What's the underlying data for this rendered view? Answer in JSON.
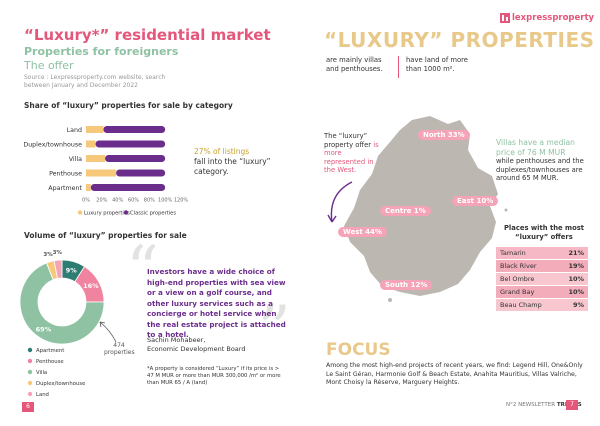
{
  "left": {
    "title": "“Luxury*” residential market",
    "subtitle1": "Properties for foreigners",
    "subtitle2": "The offer",
    "source": "Source : Lexpressproperty.com website, search between January and December 2022",
    "bar_title": "Share of “luxury” properties for sale by category",
    "bar_note_pct": "27% of listings",
    "bar_note_rest": "fall into the “luxury” category.",
    "donut_title": "Volume of “luxury” properties for sale",
    "donut_total_num": "474",
    "donut_total_word": "properties",
    "quote": "Investors have a wide choice of high-end properties with sea view or a view on a golf course, and other luxury services such as a concierge or hotel service when the real estate project is attached to a hotel.",
    "author_name": "Sachin Mohabeer,",
    "author_role": "Economic Development Board",
    "footnote": "*A property is considered “Luxury” if its price is > 47 M MUR or more than MUR 300,000 /m² or more than MUR 65 / A (land)",
    "page_num": "6"
  },
  "right": {
    "brand": "lexpressproperty",
    "brand_icon": "building-logo-icon",
    "heading": "“LUXURY” PROPERTIES",
    "col1": "are mainly villas and penthouses.",
    "col2": "have land of more than 1000 m².",
    "west_note_a": "The “luxury” property offer",
    "west_note_b": "is more represented in the West.",
    "villa_note_green": "Villas have a median price of 76 M MUR",
    "villa_note_rest": "while penthouses and the duplexes/townhouses are around 65 M MUR.",
    "places_title": "Places with the most “luxury” offers",
    "places": [
      {
        "name": "Tamarin",
        "value": "21%"
      },
      {
        "name": "Black River",
        "value": "19%"
      },
      {
        "name": "Bel Ombre",
        "value": "10%"
      },
      {
        "name": "Grand Bay",
        "value": "10%"
      },
      {
        "name": "Beau Champ",
        "value": "9%"
      }
    ],
    "regions": [
      {
        "name": "North",
        "value": "33%"
      },
      {
        "name": "Centre",
        "value": "1%"
      },
      {
        "name": "East",
        "value": "10%"
      },
      {
        "name": "West",
        "value": "44%"
      },
      {
        "name": "South",
        "value": "12%"
      }
    ],
    "focus_title": "FOCUS",
    "focus_text": "Among the most high-end projects of recent years, we find: Legend Hill, One&Only Le Saint Géran, Harmonie Golf & Beach Estate, Anahita Mauritius, Villas Valriche, Mont Choisy la Réserve, Marguery Heights.",
    "footer_a": "N°2 NEWSLETTER",
    "footer_b": "TRENDS",
    "page_num": "7"
  },
  "colors": {
    "pink": "#e5577a",
    "purple": "#6b2d8c",
    "yellow": "#f6c97a",
    "teal": "#2e7d73",
    "light_pink": "#f5a3b7",
    "green": "#8fc1a3",
    "land": "#f0839f",
    "map_grey": "#bdb7b1"
  },
  "chart_data": [
    {
      "type": "bar",
      "orientation": "horizontal",
      "stacked": true,
      "categories": [
        "Land",
        "Duplex/townhouse",
        "Villa",
        "Penthouse",
        "Apartment"
      ],
      "series": [
        {
          "name": "Luxury properties",
          "values": [
            22,
            12,
            24,
            38,
            6
          ]
        },
        {
          "name": "Classic properties",
          "values": [
            78,
            88,
            76,
            62,
            94
          ]
        }
      ],
      "x_ticks": [
        "0%",
        "20%",
        "40%",
        "60%",
        "80%",
        "100%",
        "120%"
      ],
      "xlim": [
        0,
        120
      ],
      "legend": "bottom"
    },
    {
      "type": "pie",
      "donut": true,
      "labels": [
        "Apartment",
        "Penthouse",
        "Villa",
        "Duplex/townhouse",
        "Land"
      ],
      "values": [
        9,
        16,
        69,
        3,
        3
      ],
      "value_labels": [
        "9%",
        "16%",
        "69%",
        "3%",
        "3%"
      ],
      "legend": "bottom-left"
    }
  ]
}
